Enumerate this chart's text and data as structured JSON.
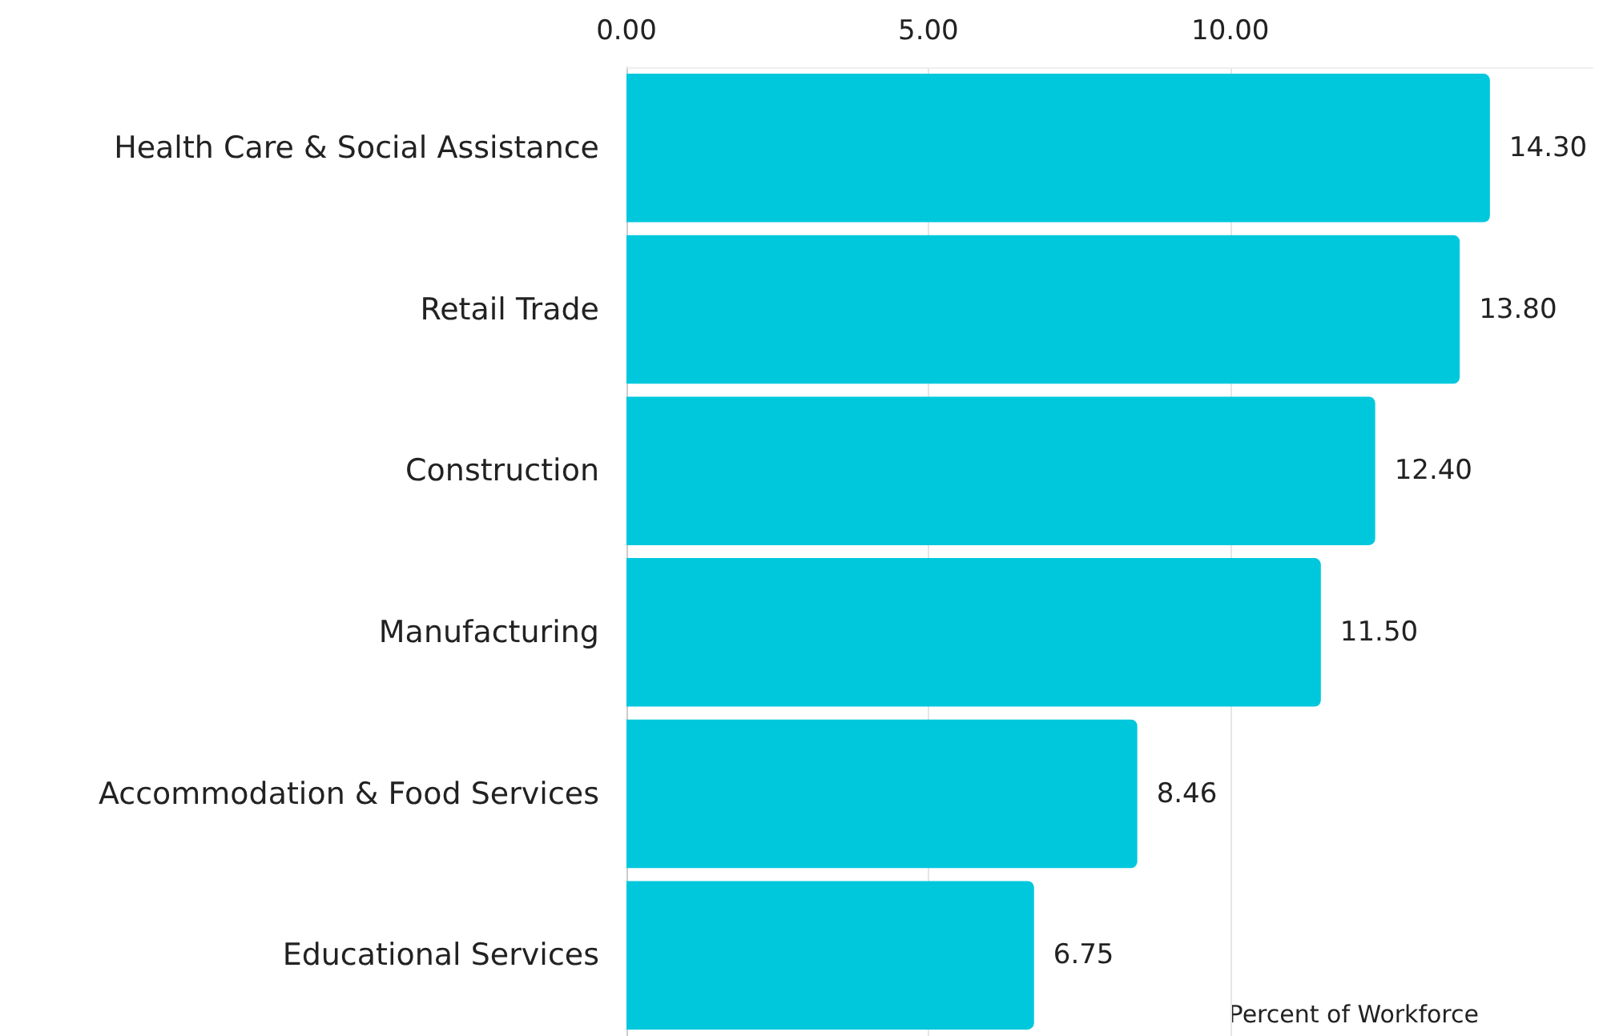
{
  "chart_data": {
    "type": "bar",
    "orientation": "horizontal",
    "xlabel": "Percent of Workforce",
    "categories": [
      "Health Care & Social Assistance",
      "Retail Trade",
      "Construction",
      "Manufacturing",
      "Accommodation & Food Services",
      "Educational Services"
    ],
    "values": [
      14.3,
      13.8,
      12.4,
      11.5,
      8.46,
      6.75
    ],
    "value_labels": [
      "14.30",
      "13.80",
      "12.40",
      "11.50",
      "8.46",
      "6.75"
    ],
    "color": "#00c8dc",
    "xticks": [
      {
        "value": 0,
        "label": "0.00"
      },
      {
        "value": 5,
        "label": "5.00"
      },
      {
        "value": 10,
        "label": "10.00"
      }
    ],
    "xlim": [
      0,
      16
    ],
    "grid": "x"
  }
}
